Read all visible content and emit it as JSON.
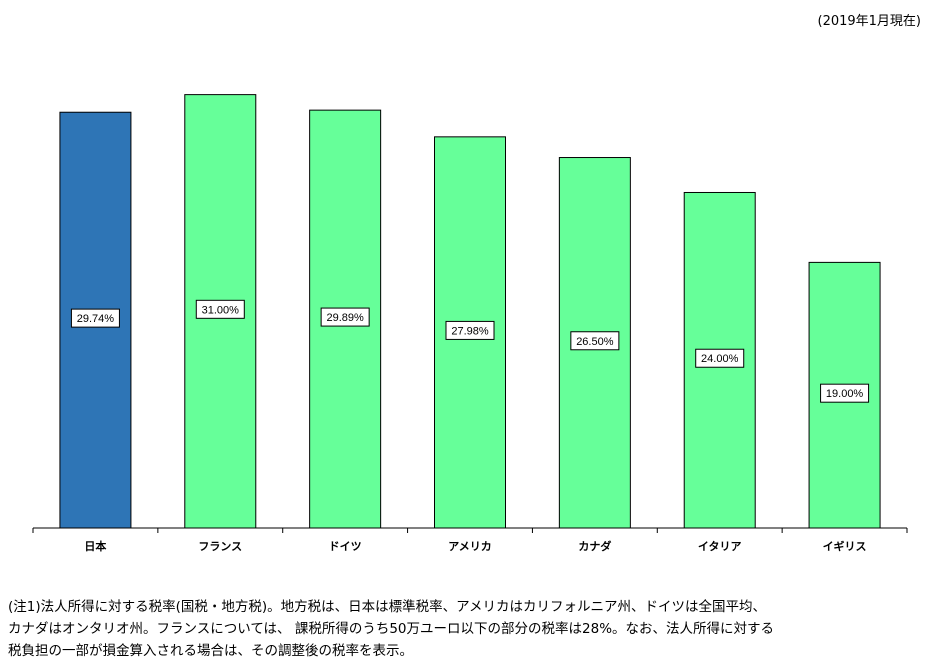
{
  "as_of": "(2019年1月現在)",
  "chart_data": {
    "type": "bar",
    "title": "",
    "xlabel": "",
    "ylabel": "",
    "ylim": [
      0,
      34
    ],
    "grid": false,
    "legend": "none",
    "categories": [
      "日本",
      "フランス",
      "ドイツ",
      "アメリカ",
      "カナダ",
      "イタリア",
      "イギリス"
    ],
    "values": [
      29.74,
      31.0,
      29.89,
      27.98,
      26.5,
      24.0,
      19.0
    ],
    "data_labels": [
      "29.74%",
      "31.00%",
      "29.89%",
      "27.98%",
      "26.50%",
      "24.00%",
      "19.00%"
    ],
    "colors": [
      "#2e75b6",
      "#66ff99",
      "#66ff99",
      "#66ff99",
      "#66ff99",
      "#66ff99",
      "#66ff99"
    ]
  },
  "notes": [
    "(注1)法人所得に対する税率(国税・地方税)。地方税は、日本は標準税率、アメリカはカリフォルニア州、ドイツは全国平均、",
    "カナダはオンタリオ州。フランスについては、 課税所得のうち50万ユーロ以下の部分の税率は28%。なお、法人所得に対する",
    "税負担の一部が損金算入される場合は、その調整後の税率を表示。"
  ]
}
